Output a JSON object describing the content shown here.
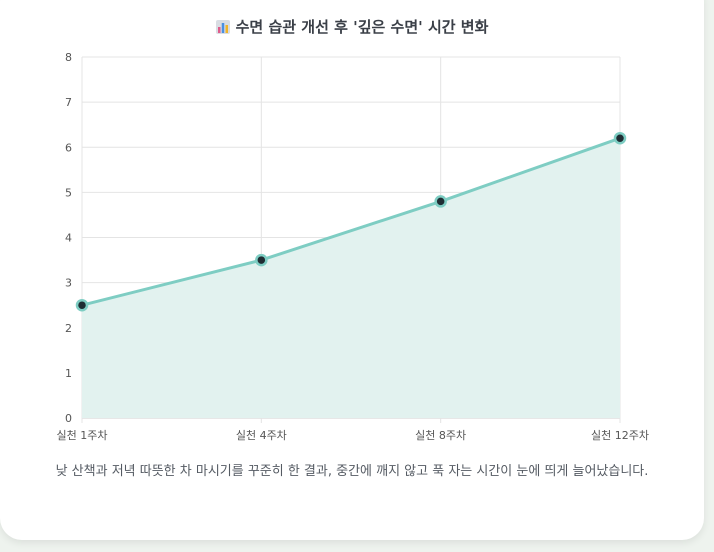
{
  "chart_data": {
    "type": "line",
    "title": "수면 습관 개선 후 '깊은 수면' 시간 변화",
    "title_icon": "bar-chart-icon",
    "categories": [
      "실천 1주차",
      "실천 4주차",
      "실천 8주차",
      "실천 12주차"
    ],
    "values": [
      2.5,
      3.5,
      4.8,
      6.2
    ],
    "ylim": [
      0,
      8
    ],
    "yticks": [
      "0",
      "1",
      "2",
      "3",
      "4",
      "5",
      "6",
      "7",
      "8"
    ],
    "xlabel": "",
    "ylabel": "",
    "grid": true,
    "fill_area": true,
    "colors": {
      "line": "#7ecdc3",
      "fill": "#e2f2ef",
      "point": "#1f2d33",
      "grid": "#e4e4e4"
    }
  },
  "caption": "낮 산책과 저녁 따뜻한 차 마시기를 꾸준히 한 결과, 중간에 깨지 않고 푹 자는 시간이 눈에 띄게 늘어났습니다."
}
